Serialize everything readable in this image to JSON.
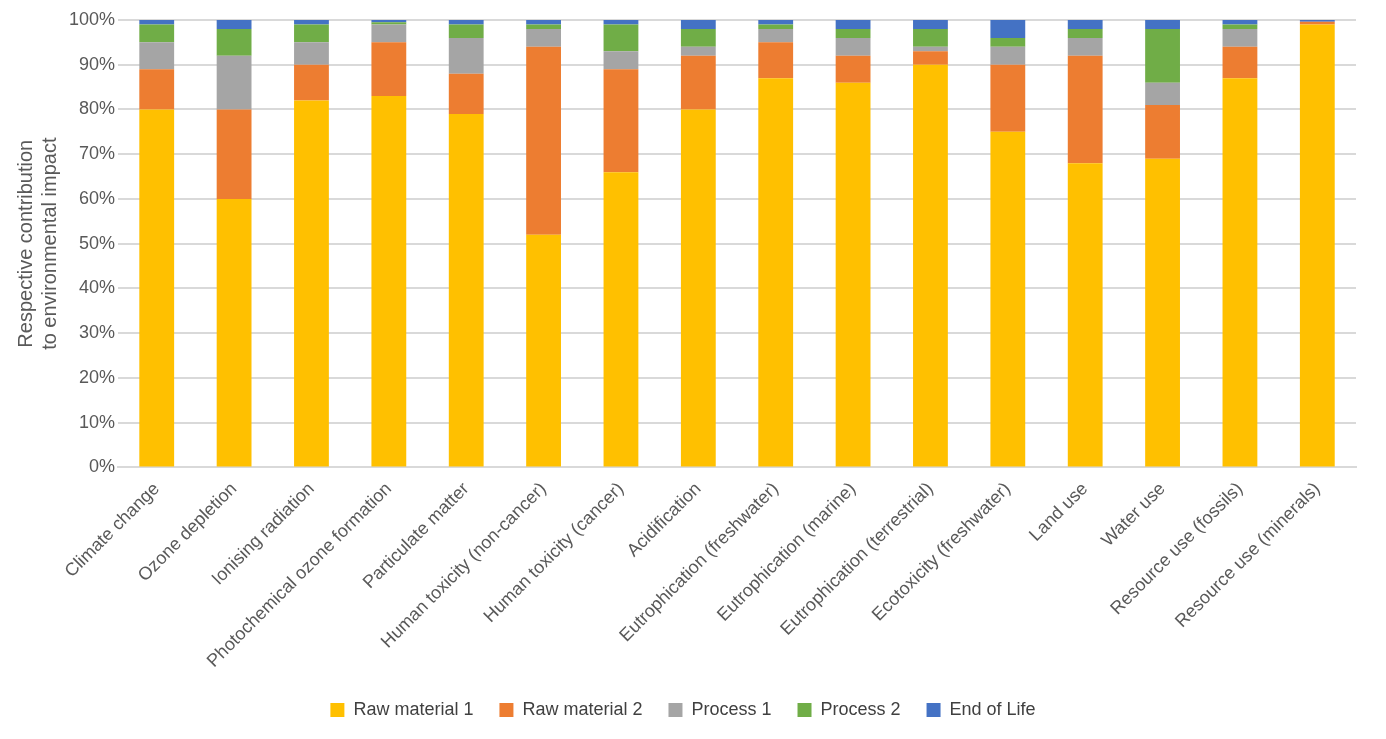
{
  "chart_data": {
    "type": "bar",
    "stacked": true,
    "ylabel": "Respective contribution\nto environmental impact",
    "categories": [
      "Climate change",
      "Ozone depletion",
      "Ionising radiation",
      "Photochemical ozone formation",
      "Particulate matter",
      "Human toxicity (non-cancer)",
      "Human toxicity (cancer)",
      "Acidification",
      "Eutrophication (freshwater)",
      "Eutrophication (marine)",
      "Eutrophication (terrestrial)",
      "Ecotoxicity (freshwater)",
      "Land use",
      "Water use",
      "Resource use (fossils)",
      "Resource use (minerals)"
    ],
    "series": [
      {
        "name": "Raw material 1",
        "color": "#ffc000",
        "values": [
          80,
          60,
          82,
          83,
          79,
          52,
          66,
          80,
          87,
          86,
          90,
          75,
          68,
          69,
          87,
          99
        ]
      },
      {
        "name": "Raw material 2",
        "color": "#ed7d31",
        "values": [
          9,
          20,
          8,
          12,
          9,
          42,
          23,
          12,
          8,
          6,
          3,
          15,
          24,
          12,
          7,
          0.6
        ]
      },
      {
        "name": "Process 1",
        "color": "#a5a5a5",
        "values": [
          6,
          12,
          5,
          4,
          8,
          4,
          4,
          2,
          3,
          4,
          1,
          4,
          4,
          5,
          4,
          null
        ]
      },
      {
        "name": "Process 2",
        "color": "#70ad47",
        "values": [
          4,
          6,
          4,
          0.5,
          3,
          1,
          6,
          4,
          1,
          2,
          4,
          2,
          2,
          12,
          1,
          null
        ]
      },
      {
        "name": "End of Life",
        "color": "#4472c4",
        "values": [
          1,
          2,
          1,
          0.5,
          1,
          1,
          1,
          2,
          1,
          2,
          2,
          4,
          2,
          2,
          1,
          0.4
        ]
      }
    ],
    "ylim": [
      0,
      100
    ],
    "yticks": [
      {
        "value": 0,
        "label": "0%"
      },
      {
        "value": 10,
        "label": "10%"
      },
      {
        "value": 20,
        "label": "20%"
      },
      {
        "value": 30,
        "label": "30%"
      },
      {
        "value": 40,
        "label": "40%"
      },
      {
        "value": 50,
        "label": "50%"
      },
      {
        "value": 60,
        "label": "60%"
      },
      {
        "value": 70,
        "label": "70%"
      },
      {
        "value": 80,
        "label": "80%"
      },
      {
        "value": 90,
        "label": "90%"
      },
      {
        "value": 100,
        "label": "100%"
      }
    ],
    "grid": "y",
    "legend": "bottom"
  }
}
